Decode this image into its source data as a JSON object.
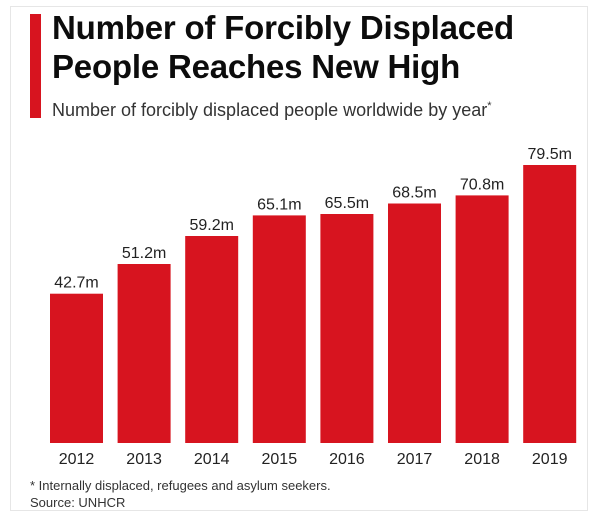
{
  "header": {
    "title_line1": "Number of Forcibly Displaced",
    "title_line2": "People Reaches New High",
    "subtitle": "Number of forcibly displaced people worldwide by year",
    "subtitle_mark": "*"
  },
  "footer": {
    "footnote": "* Internally displaced, refugees and asylum seekers.",
    "source": "Source: UNHCR"
  },
  "chart_data": {
    "type": "bar",
    "title": "Number of Forcibly Displaced People Reaches New High",
    "subtitle": "Number of forcibly displaced people worldwide by year*",
    "categories": [
      "2012",
      "2013",
      "2014",
      "2015",
      "2016",
      "2017",
      "2018",
      "2019"
    ],
    "values": [
      42.7,
      51.2,
      59.2,
      65.1,
      65.5,
      68.5,
      70.8,
      79.5
    ],
    "value_labels": [
      "42.7m",
      "51.2m",
      "59.2m",
      "65.1m",
      "65.5m",
      "68.5m",
      "70.8m",
      "79.5m"
    ],
    "unit": "m",
    "xlabel": "",
    "ylabel": "",
    "ylim": [
      0,
      79.5
    ],
    "grid": false,
    "legend": "none",
    "bar_color": "#d7141f"
  }
}
